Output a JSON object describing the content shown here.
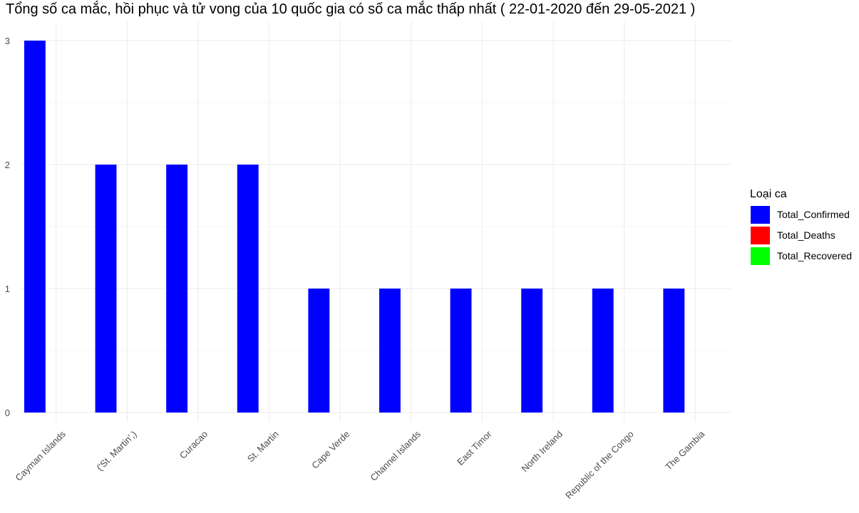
{
  "chart_data": {
    "type": "bar",
    "title": "Tổng số ca mắc, hồi phục và tử vong của 10 quốc gia có số ca mắc thấp nhất ( 22-01-2020  đến  29-05-2021 )",
    "xlabel": "",
    "ylabel": "",
    "categories": [
      "Cayman Islands",
      "('St. Martin',)",
      "Curacao",
      "St. Martin",
      "Cape Verde",
      "Channel Islands",
      "East Timor",
      "North Ireland",
      "Republic of the Congo",
      "The Gambia"
    ],
    "ylim": [
      0,
      3.15
    ],
    "yticks": [
      "0",
      "1",
      "2",
      "3"
    ],
    "grid": true,
    "legend": {
      "title": "Loại ca",
      "placement": "right"
    },
    "series": [
      {
        "name": "Total_Confirmed",
        "color": "#0000FF",
        "values": [
          3,
          2,
          2,
          2,
          1,
          1,
          1,
          1,
          1,
          1
        ]
      },
      {
        "name": "Total_Deaths",
        "color": "#FF0000",
        "values": [
          0,
          0,
          0,
          0,
          0,
          0,
          0,
          0,
          0,
          0
        ]
      },
      {
        "name": "Total_Recovered",
        "color": "#00FF00",
        "values": [
          0,
          0,
          0,
          0,
          0,
          0,
          0,
          0,
          0,
          0
        ]
      }
    ]
  }
}
